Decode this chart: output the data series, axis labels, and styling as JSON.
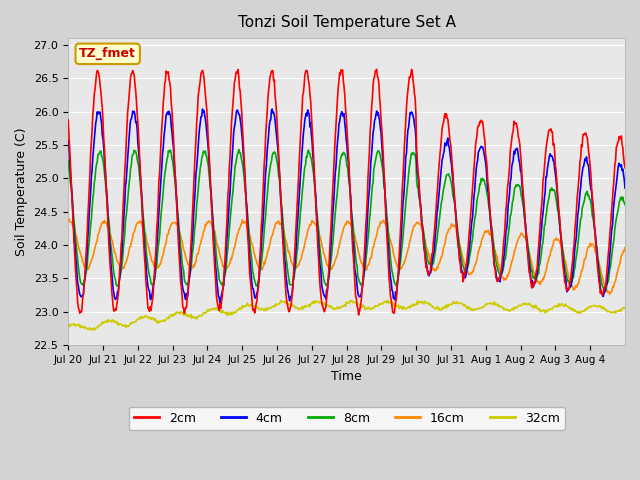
{
  "title": "Tonzi Soil Temperature Set A",
  "xlabel": "Time",
  "ylabel": "Soil Temperature (C)",
  "ylim": [
    22.5,
    27.1
  ],
  "annotation": "TZ_fmet",
  "annotation_color": "#cc0000",
  "annotation_bg": "#ffffcc",
  "annotation_border": "#cc9900",
  "series_colors": [
    "#ff0000",
    "#0000ff",
    "#00aa00",
    "#ff8800",
    "#cccc00"
  ],
  "series_labels": [
    "2cm",
    "4cm",
    "8cm",
    "16cm",
    "32cm"
  ],
  "n_days": 16,
  "x_tick_labels": [
    "Jul 20",
    "Jul 21",
    "Jul 22",
    "Jul 23",
    "Jul 24",
    "Jul 25",
    "Jul 26",
    "Jul 27",
    "Jul 28",
    "Jul 29",
    "Jul 30",
    "Jul 31",
    "Aug 1",
    "Aug 2",
    "Aug 3",
    "Aug 4"
  ],
  "yticks": [
    22.5,
    23.0,
    23.5,
    24.0,
    24.5,
    25.0,
    25.5,
    26.0,
    26.5,
    27.0
  ]
}
